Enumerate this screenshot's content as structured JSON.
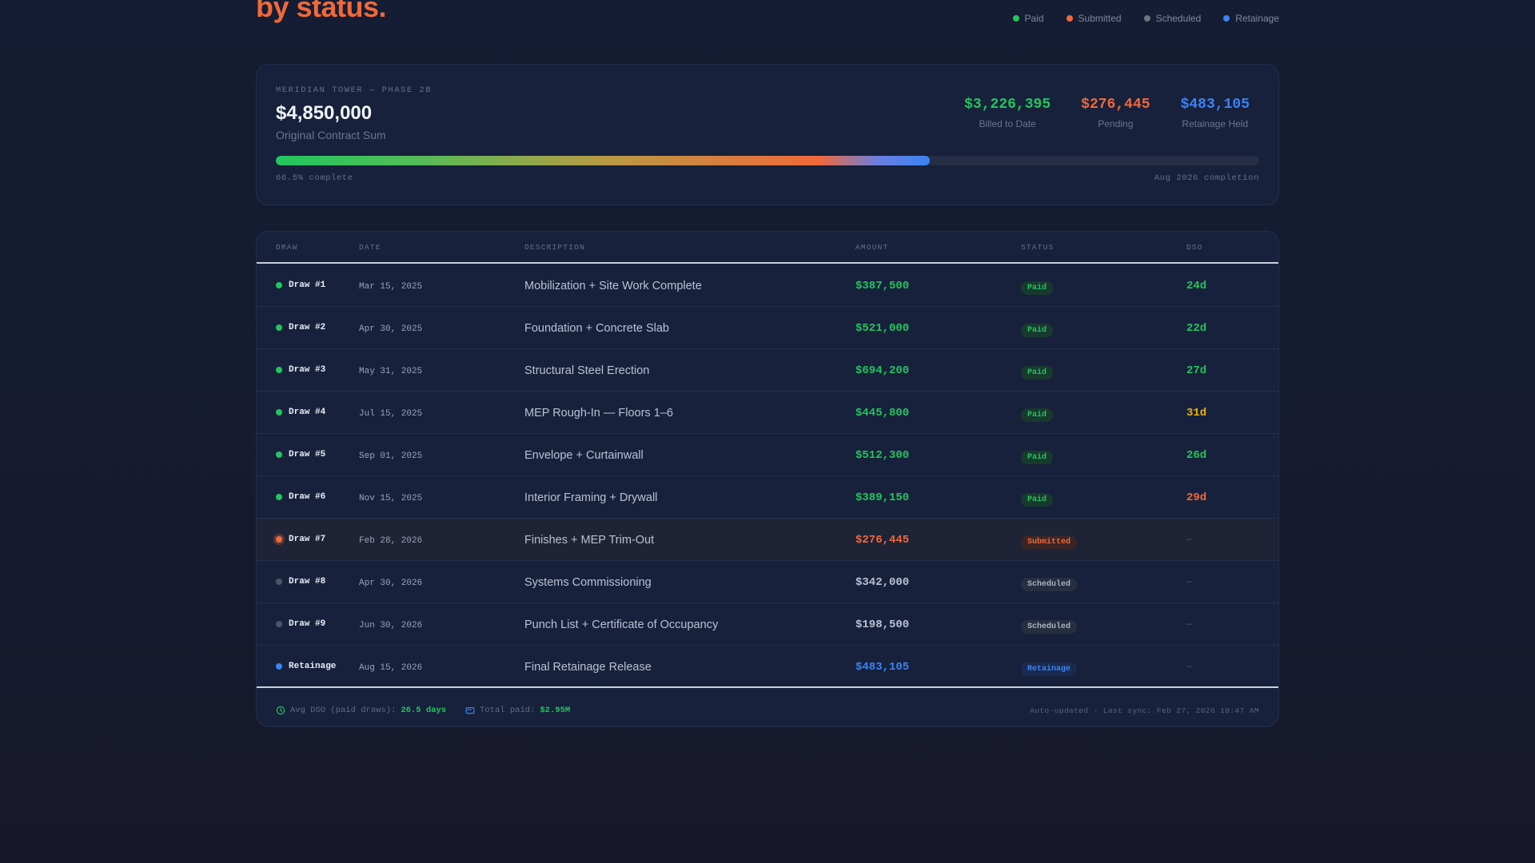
{
  "header": {
    "title": "by status."
  },
  "legend": [
    {
      "label": "Paid",
      "color": "#22c55e"
    },
    {
      "label": "Submitted",
      "color": "#f0693a"
    },
    {
      "label": "Scheduled",
      "color": "#6b7280"
    },
    {
      "label": "Retainage",
      "color": "#3b82f6"
    }
  ],
  "summary": {
    "project_label": "MERIDIAN TOWER — PHASE 2B",
    "contract_sum": "$4,850,000",
    "contract_label": "Original Contract Sum",
    "stats": [
      {
        "value": "$3,226,395",
        "label": "Billed to Date",
        "color": "#22c55e"
      },
      {
        "value": "$276,445",
        "label": "Pending",
        "color": "#f0693a"
      },
      {
        "value": "$483,105",
        "label": "Retainage Held",
        "color": "#3b82f6"
      }
    ],
    "progress_fraction": 0.665,
    "progress_label": "66.5% complete",
    "completion_label": "Aug 2026 completion"
  },
  "table": {
    "headers": {
      "draw": "DRAW",
      "date": "DATE",
      "description": "DESCRIPTION",
      "amount": "AMOUNT",
      "status": "STATUS",
      "dso": "DSO"
    },
    "rows": [
      {
        "draw": "Draw #1",
        "date": "Mar 15, 2025",
        "description": "Mobilization + Site Work Complete",
        "amount": "$387,500",
        "status": "Paid",
        "dso": "24d",
        "dso_color": "#22c55e"
      },
      {
        "draw": "Draw #2",
        "date": "Apr 30, 2025",
        "description": "Foundation + Concrete Slab",
        "amount": "$521,000",
        "status": "Paid",
        "dso": "22d",
        "dso_color": "#22c55e"
      },
      {
        "draw": "Draw #3",
        "date": "May 31, 2025",
        "description": "Structural Steel Erection",
        "amount": "$694,200",
        "status": "Paid",
        "dso": "27d",
        "dso_color": "#22c55e"
      },
      {
        "draw": "Draw #4",
        "date": "Jul 15, 2025",
        "description": "MEP Rough-In — Floors 1–6",
        "amount": "$445,800",
        "status": "Paid",
        "dso": "31d",
        "dso_color": "#eab308"
      },
      {
        "draw": "Draw #5",
        "date": "Sep 01, 2025",
        "description": "Envelope + Curtainwall",
        "amount": "$512,300",
        "status": "Paid",
        "dso": "26d",
        "dso_color": "#22c55e"
      },
      {
        "draw": "Draw #6",
        "date": "Nov 15, 2025",
        "description": "Interior Framing + Drywall",
        "amount": "$389,150",
        "status": "Paid",
        "dso": "29d",
        "dso_color": "#f0693a"
      },
      {
        "draw": "Draw #7",
        "date": "Feb 28, 2026",
        "description": "Finishes + MEP Trim-Out",
        "amount": "$276,445",
        "status": "Submitted",
        "dso": "—",
        "dso_color": "#4b5368"
      },
      {
        "draw": "Draw #8",
        "date": "Apr 30, 2026",
        "description": "Systems Commissioning",
        "amount": "$342,000",
        "status": "Scheduled",
        "dso": "—",
        "dso_color": "#4b5368"
      },
      {
        "draw": "Draw #9",
        "date": "Jun 30, 2026",
        "description": "Punch List + Certificate of Occupancy",
        "amount": "$198,500",
        "status": "Scheduled",
        "dso": "—",
        "dso_color": "#4b5368"
      },
      {
        "draw": "Retainage",
        "date": "Aug 15, 2026",
        "description": "Final Retainage Release",
        "amount": "$483,105",
        "status": "Retainage",
        "dso": "—",
        "dso_color": "#4b5368"
      }
    ]
  },
  "status_styles": {
    "Paid": {
      "dot": "#22c55e",
      "amount": "#22c55e",
      "badge_bg": "#183a2e",
      "badge_fg": "#22c55e"
    },
    "Submitted": {
      "dot": "#f0693a",
      "amount": "#f0693a",
      "badge_bg": "#3a2526",
      "badge_fg": "#f0693a"
    },
    "Scheduled": {
      "dot": "#4b5563",
      "amount": "#b9c1d2",
      "badge_bg": "#262e40",
      "badge_fg": "#aab2c4"
    },
    "Retainage": {
      "dot": "#3b82f6",
      "amount": "#3b82f6",
      "badge_bg": "#1b2b4f",
      "badge_fg": "#3b82f6"
    }
  },
  "footer": {
    "avg_dso_label": "Avg DSO (paid draws):",
    "avg_dso_value": "26.5 days",
    "total_paid_label": "Total paid:",
    "total_paid_value": "$2.95M",
    "sync_text": "Auto-updated · Last sync: Feb 27, 2026 10:47 AM"
  }
}
